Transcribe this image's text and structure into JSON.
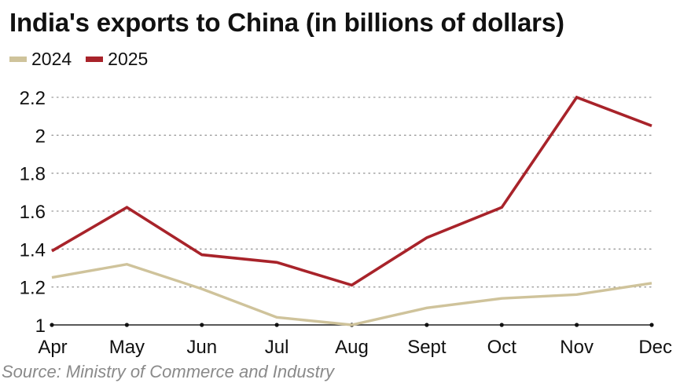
{
  "chart_data": {
    "type": "line",
    "title": "India's exports to China (in billions of dollars)",
    "categories": [
      "Apr",
      "May",
      "Jun",
      "Jul",
      "Aug",
      "Sept",
      "Oct",
      "Nov",
      "Dec"
    ],
    "series": [
      {
        "name": "2024",
        "color": "#cfc39b",
        "values": [
          1.25,
          1.32,
          1.19,
          1.04,
          1.0,
          1.09,
          1.14,
          1.16,
          1.22
        ]
      },
      {
        "name": "2025",
        "color": "#a8232a",
        "values": [
          1.39,
          1.62,
          1.37,
          1.33,
          1.21,
          1.46,
          1.62,
          2.2,
          2.05
        ]
      }
    ],
    "y_ticks": [
      "1",
      "1.2",
      "1.4",
      "1.6",
      "1.8",
      "2",
      "2.2"
    ],
    "ylim": [
      1,
      2.2
    ],
    "grid": true,
    "xlabel": "",
    "ylabel": "",
    "legend_position": "top-left",
    "source": "Source: Ministry of Commerce and Industry"
  }
}
